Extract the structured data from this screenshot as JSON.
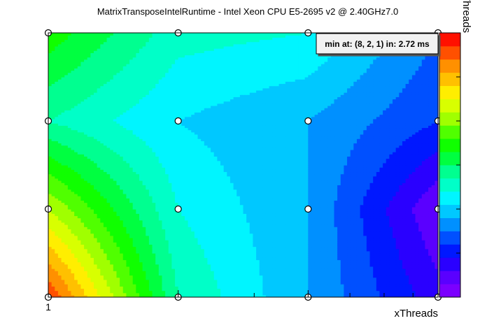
{
  "chart_data": {
    "type": "heatmap",
    "title": "MatrixTransposeIntelRuntime - Intel Xeon CPU E5-2695 v2 @ 2.40GHz7.0",
    "xlabel": "xThreads",
    "ylabel": "yThreads",
    "x_tick_labels": [
      "1"
    ],
    "x": [
      1,
      2,
      4,
      8
    ],
    "y": [
      1,
      2,
      4,
      8
    ],
    "x_scale": "log2",
    "y_scale": "log2",
    "z_grid": [
      [
        0.95,
        0.45,
        0.3,
        0.12
      ],
      [
        0.7,
        0.4,
        0.3,
        0.05
      ],
      [
        0.45,
        0.35,
        0.3,
        0.2
      ],
      [
        0.58,
        0.42,
        0.4,
        0.25
      ]
    ],
    "z_note": "rows are y = 1,2,4,8 (bottom to top); values normalized 0..1 on color palette",
    "palette": [
      "#7b00ff",
      "#5a00ff",
      "#2a00ff",
      "#0018ff",
      "#0050ff",
      "#0090ff",
      "#00c8ff",
      "#00f5ff",
      "#00ffc8",
      "#00ff90",
      "#00ff40",
      "#10ff00",
      "#50ff00",
      "#a0ff00",
      "#d8ff00",
      "#ffee00",
      "#ffc000",
      "#ff9000",
      "#ff5000",
      "#ff1000"
    ],
    "annotation": "min at: (8, 2, 1) in: 2.72 ms"
  }
}
